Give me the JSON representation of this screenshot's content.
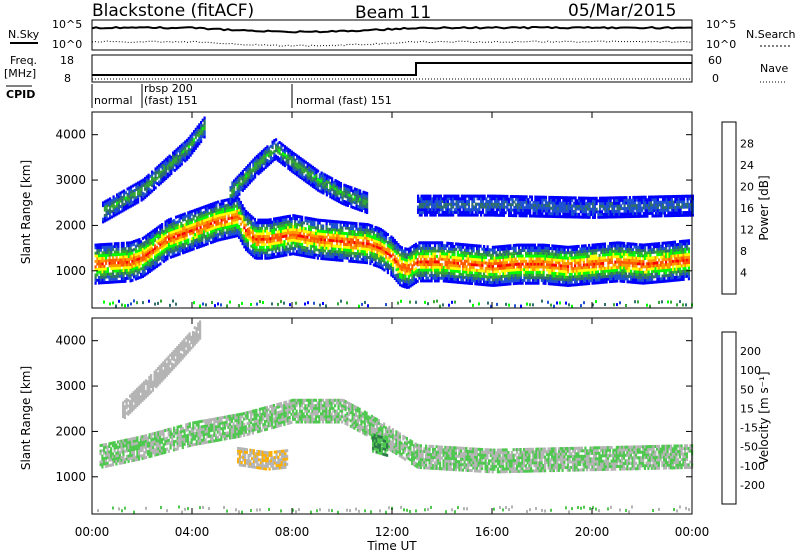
{
  "header": {
    "station": "Blackstone (fitACF)",
    "beam": "Beam 11",
    "date": "05/Mar/2015"
  },
  "top_panels": {
    "nsky_label": "N.Sky",
    "nsearch_label": "N.Search",
    "nsky_ticks": [
      "10^5",
      "10^0"
    ],
    "freq_label": "Freq.",
    "freq_unit": "[MHz]",
    "freq_ticks": [
      "18",
      "8"
    ],
    "nave_label": "Nave",
    "nave_ticks": [
      "60",
      "0"
    ],
    "cpid_label": "CPID",
    "cpid_segments": [
      {
        "label": "normal",
        "start_hour": 0.0,
        "end_hour": 2.0
      },
      {
        "label": "rbsp 200",
        "label2": "(fast) 151",
        "start_hour": 2.0,
        "end_hour": 8.0
      },
      {
        "label": "normal (fast)  151",
        "start_hour": 8.0,
        "end_hour": 24.0
      }
    ]
  },
  "x_axis": {
    "label": "Time UT",
    "ticks": [
      "00:00",
      "04:00",
      "08:00",
      "12:00",
      "16:00",
      "20:00",
      "00:00"
    ],
    "range_hours": [
      0,
      24
    ]
  },
  "power_panel": {
    "ylabel": "Slant Range [km]",
    "yticks": [
      "1000",
      "2000",
      "3000",
      "4000"
    ],
    "colorbar_label": "Power [dB]",
    "colorbar_ticks": [
      "4",
      "8",
      "12",
      "16",
      "20",
      "24",
      "28"
    ]
  },
  "velocity_panel": {
    "ylabel": "Slant Range [km]",
    "yticks": [
      "1000",
      "2000",
      "3000",
      "4000"
    ],
    "colorbar_label": "Velocity [m s⁻¹]",
    "colorbar_ticks": [
      "200",
      "100",
      "50",
      "15",
      "-15",
      "-50",
      "-100",
      "-200"
    ]
  },
  "chart_data": {
    "type": "heatmap",
    "x_unit": "hours UT",
    "y_unit": "km",
    "xlim": [
      0,
      24
    ],
    "ylim": [
      180,
      4500
    ],
    "power_colorbar": {
      "range": [
        0,
        32
      ],
      "colors": [
        "#0000ff",
        "#1e50d2",
        "#2f6e6e",
        "#33a633",
        "#00ff00",
        "#ffff00",
        "#ff9900",
        "#ff5a00",
        "#ff0000"
      ]
    },
    "velocity_colorbar": {
      "range": [
        -250,
        250
      ],
      "colors": [
        "#ff0000",
        "#ff7a00",
        "#ffb000",
        "#b4b4b4",
        "#4fc84f",
        "#2f7a4a",
        "#2030a0",
        "#0000ff"
      ]
    },
    "power_features": [
      {
        "name": "main-band",
        "points": [
          [
            0.1,
            1150
          ],
          [
            1.5,
            1200
          ],
          [
            2.0,
            1300
          ],
          [
            3.0,
            1700
          ],
          [
            4.0,
            1900
          ],
          [
            5.0,
            2100
          ],
          [
            5.8,
            2200
          ],
          [
            6.1,
            1900
          ],
          [
            6.5,
            1700
          ],
          [
            7.0,
            1700
          ],
          [
            8.0,
            1800
          ],
          [
            9.0,
            1700
          ],
          [
            10.0,
            1650
          ],
          [
            11.0,
            1600
          ],
          [
            11.5,
            1500
          ],
          [
            12.0,
            1300
          ],
          [
            12.3,
            1100
          ],
          [
            12.6,
            1050
          ],
          [
            13.0,
            1200
          ],
          [
            14.0,
            1200
          ],
          [
            15.0,
            1150
          ],
          [
            16.0,
            1100
          ],
          [
            17.0,
            1150
          ],
          [
            18.0,
            1150
          ],
          [
            19.0,
            1100
          ],
          [
            20.0,
            1150
          ],
          [
            21.0,
            1200
          ],
          [
            22.0,
            1150
          ],
          [
            23.0,
            1200
          ],
          [
            23.9,
            1250
          ]
        ],
        "peak_db": 28
      },
      {
        "name": "upper-streak",
        "points": [
          [
            0.4,
            2300
          ],
          [
            2.0,
            2800
          ],
          [
            3.0,
            3300
          ],
          [
            3.8,
            3700
          ],
          [
            4.5,
            4200
          ]
        ],
        "peak_db": 14
      },
      {
        "name": "arc",
        "points": [
          [
            5.5,
            2700
          ],
          [
            6.5,
            3300
          ],
          [
            7.3,
            3700
          ],
          [
            8.0,
            3400
          ],
          [
            9.0,
            3000
          ],
          [
            10.0,
            2700
          ],
          [
            11.0,
            2500
          ]
        ],
        "peak_db": 14
      },
      {
        "name": "upper-flat",
        "points": [
          [
            13.0,
            2450
          ],
          [
            16.0,
            2450
          ],
          [
            20.0,
            2400
          ],
          [
            24.0,
            2450
          ]
        ],
        "peak_db": 8
      }
    ],
    "velocity_features": [
      {
        "name": "grey-band",
        "points": [
          [
            0.3,
            1500
          ],
          [
            2.0,
            1700
          ],
          [
            4.0,
            2000
          ],
          [
            6.0,
            2200
          ],
          [
            8.0,
            2500
          ],
          [
            10.0,
            2500
          ],
          [
            11.0,
            2200
          ],
          [
            13.0,
            1500
          ],
          [
            16.0,
            1400
          ],
          [
            20.0,
            1450
          ],
          [
            24.0,
            1500
          ]
        ],
        "velocity": 0
      },
      {
        "name": "orange-patch",
        "points": [
          [
            5.8,
            1500
          ],
          [
            7.0,
            1400
          ],
          [
            7.8,
            1450
          ]
        ],
        "velocity": -60
      },
      {
        "name": "orange-streak",
        "points": [
          [
            1.2,
            2500
          ],
          [
            2.5,
            3200
          ],
          [
            3.5,
            3800
          ],
          [
            4.3,
            4300
          ]
        ],
        "velocity": -40
      },
      {
        "name": "green-patch",
        "points": [
          [
            11.2,
            1800
          ],
          [
            11.8,
            1700
          ]
        ],
        "velocity": 60
      }
    ]
  }
}
